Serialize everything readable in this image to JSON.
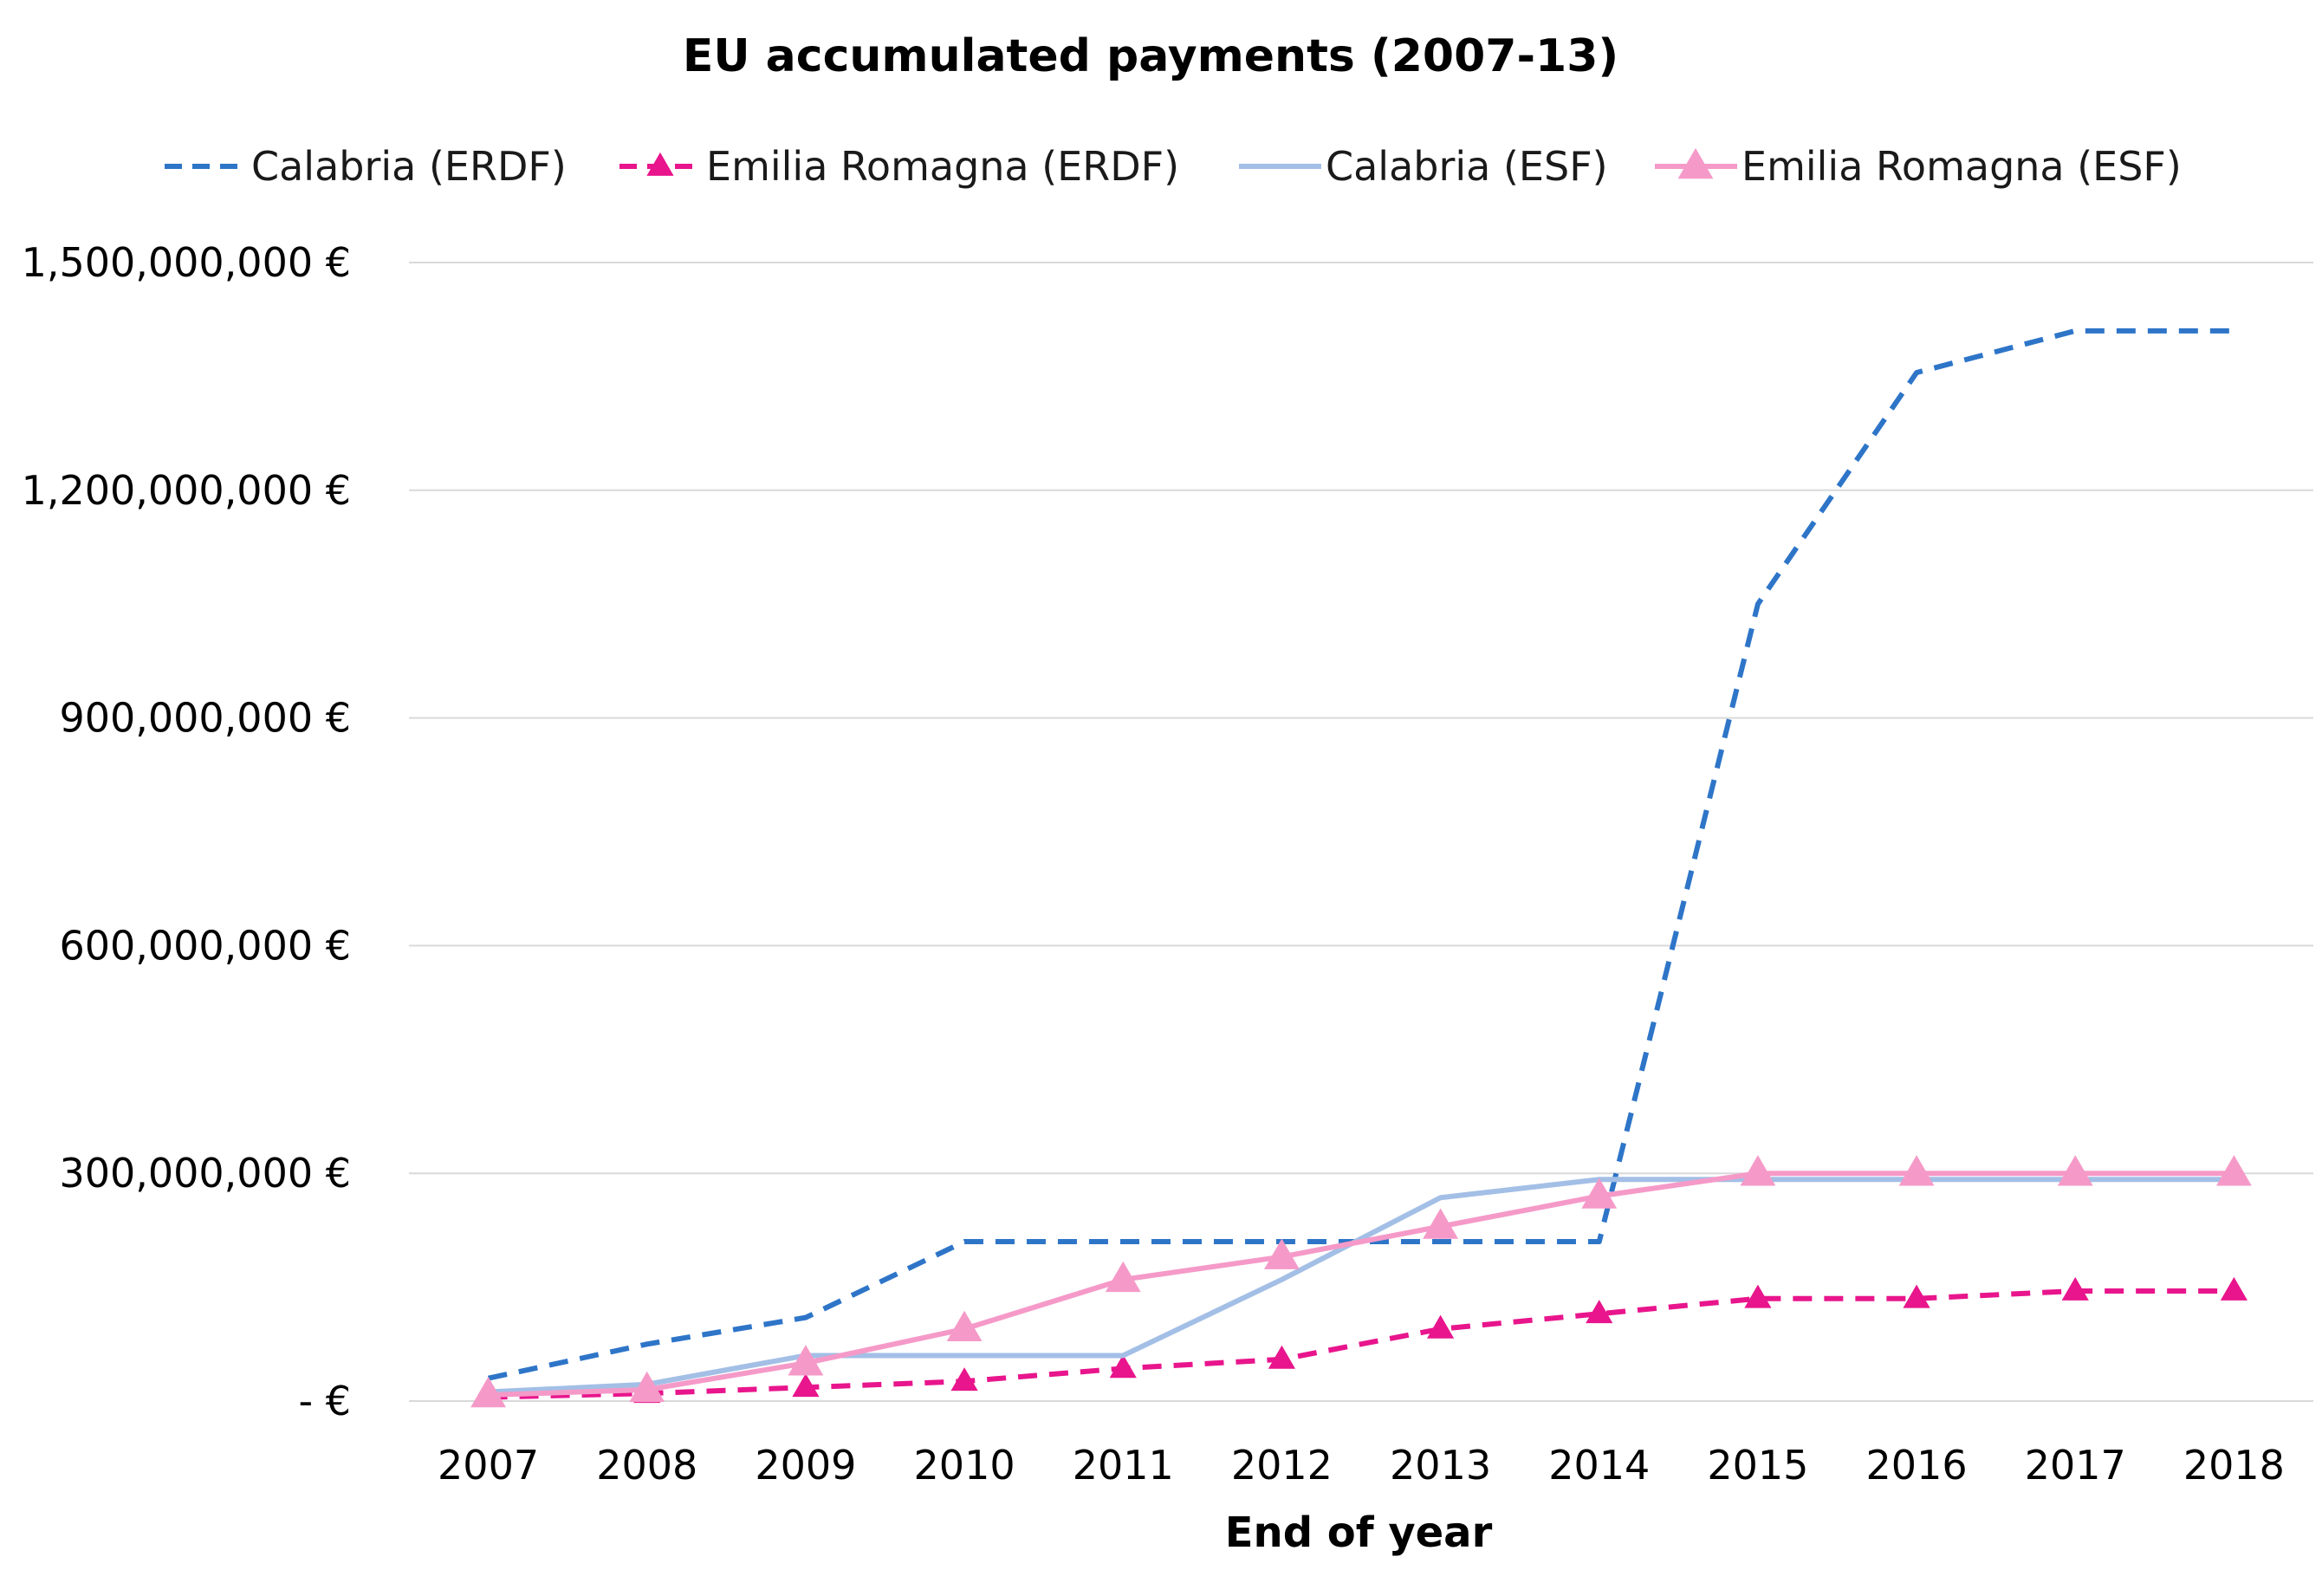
{
  "chart_data": {
    "type": "line",
    "title": "EU accumulated payments (2007-13)",
    "xlabel": "End of year",
    "ylabel": "",
    "categories": [
      "2007",
      "2008",
      "2009",
      "2010",
      "2011",
      "2012",
      "2013",
      "2014",
      "2015",
      "2016",
      "2017",
      "2018"
    ],
    "ylim": [
      0,
      1500000000
    ],
    "yticks": [
      {
        "value": 0,
        "label": "-   €"
      },
      {
        "value": 300000000,
        "label": "300,000,000 €"
      },
      {
        "value": 600000000,
        "label": "600,000,000 €"
      },
      {
        "value": 900000000,
        "label": "900,000,000 €"
      },
      {
        "value": 1200000000,
        "label": "1,200,000,000 €"
      },
      {
        "value": 1500000000,
        "label": "1,500,000,000 €"
      }
    ],
    "grid": true,
    "legend_position": "top",
    "series": [
      {
        "name": "Calabria (ERDF)",
        "color": "#2e75c8",
        "dash": true,
        "marker": "none",
        "values": [
          30000000,
          75000000,
          110000000,
          210000000,
          210000000,
          210000000,
          210000000,
          210000000,
          1050000000,
          1355000000,
          1410000000,
          1410000000
        ]
      },
      {
        "name": "Emilia Romagna (ERDF)",
        "color": "#e8158c",
        "dash": true,
        "marker": "triangle",
        "values": [
          5000000,
          10000000,
          18000000,
          26000000,
          43000000,
          55000000,
          95000000,
          115000000,
          135000000,
          135000000,
          145000000,
          145000000
        ]
      },
      {
        "name": "Calabria (ESF)",
        "color": "#a3bfe6",
        "dash": false,
        "marker": "none",
        "values": [
          12000000,
          22000000,
          60000000,
          60000000,
          60000000,
          160000000,
          268000000,
          292000000,
          292000000,
          292000000,
          292000000,
          292000000
        ]
      },
      {
        "name": "Emilia Romagna (ESF)",
        "color": "#f59ac8",
        "dash": false,
        "marker": "triangle",
        "values": [
          8000000,
          15000000,
          50000000,
          95000000,
          160000000,
          190000000,
          230000000,
          270000000,
          300000000,
          300000000,
          300000000,
          300000000
        ]
      }
    ]
  }
}
